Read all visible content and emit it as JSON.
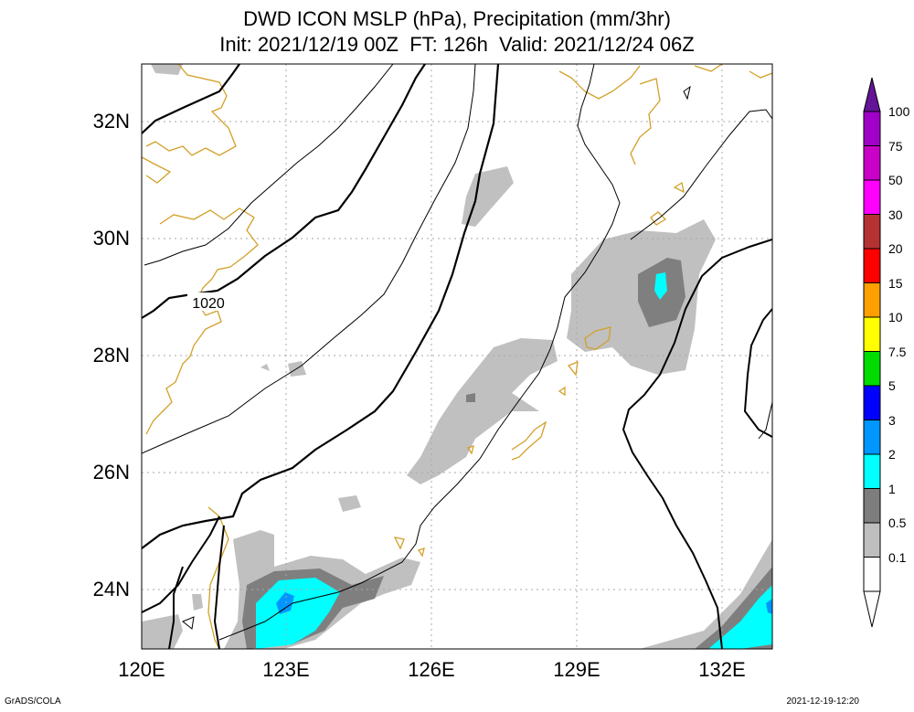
{
  "title_line1": "DWD ICON MSLP (hPa), Precipitation (mm/3hr)",
  "title_line2": "Init: 2021/12/19 00Z  FT: 126h  Valid: 2021/12/24 06Z",
  "x_ticks": [
    "120E",
    "123E",
    "126E",
    "129E",
    "132E"
  ],
  "y_ticks": [
    "32N",
    "30N",
    "28N",
    "26N",
    "24N"
  ],
  "isobar_label": "1020",
  "legend": {
    "levels": [
      "100",
      "75",
      "50",
      "30",
      "20",
      "15",
      "10",
      "7.5",
      "5",
      "3",
      "2",
      "1",
      "0.5",
      "0.1"
    ],
    "colors": [
      "#a000c8",
      "#c800c8",
      "#ff00ff",
      "#b43232",
      "#ff0000",
      "#ffa000",
      "#ffff00",
      "#00dc00",
      "#0000ff",
      "#0096ff",
      "#00ffff",
      "#7d7d7d",
      "#bebebe",
      "#ffffff"
    ],
    "top_arrow_color": "#641496"
  },
  "colors": {
    "coastline": "#d2a028",
    "isobar": "#000000",
    "precip_light": "#c0c0c0",
    "precip_mid": "#7f7f7f",
    "precip_1": "#00ffff",
    "precip_2": "#0096ff"
  },
  "footer_left": "GrADS/COLA",
  "footer_right": "2021-12-19-12:20"
}
